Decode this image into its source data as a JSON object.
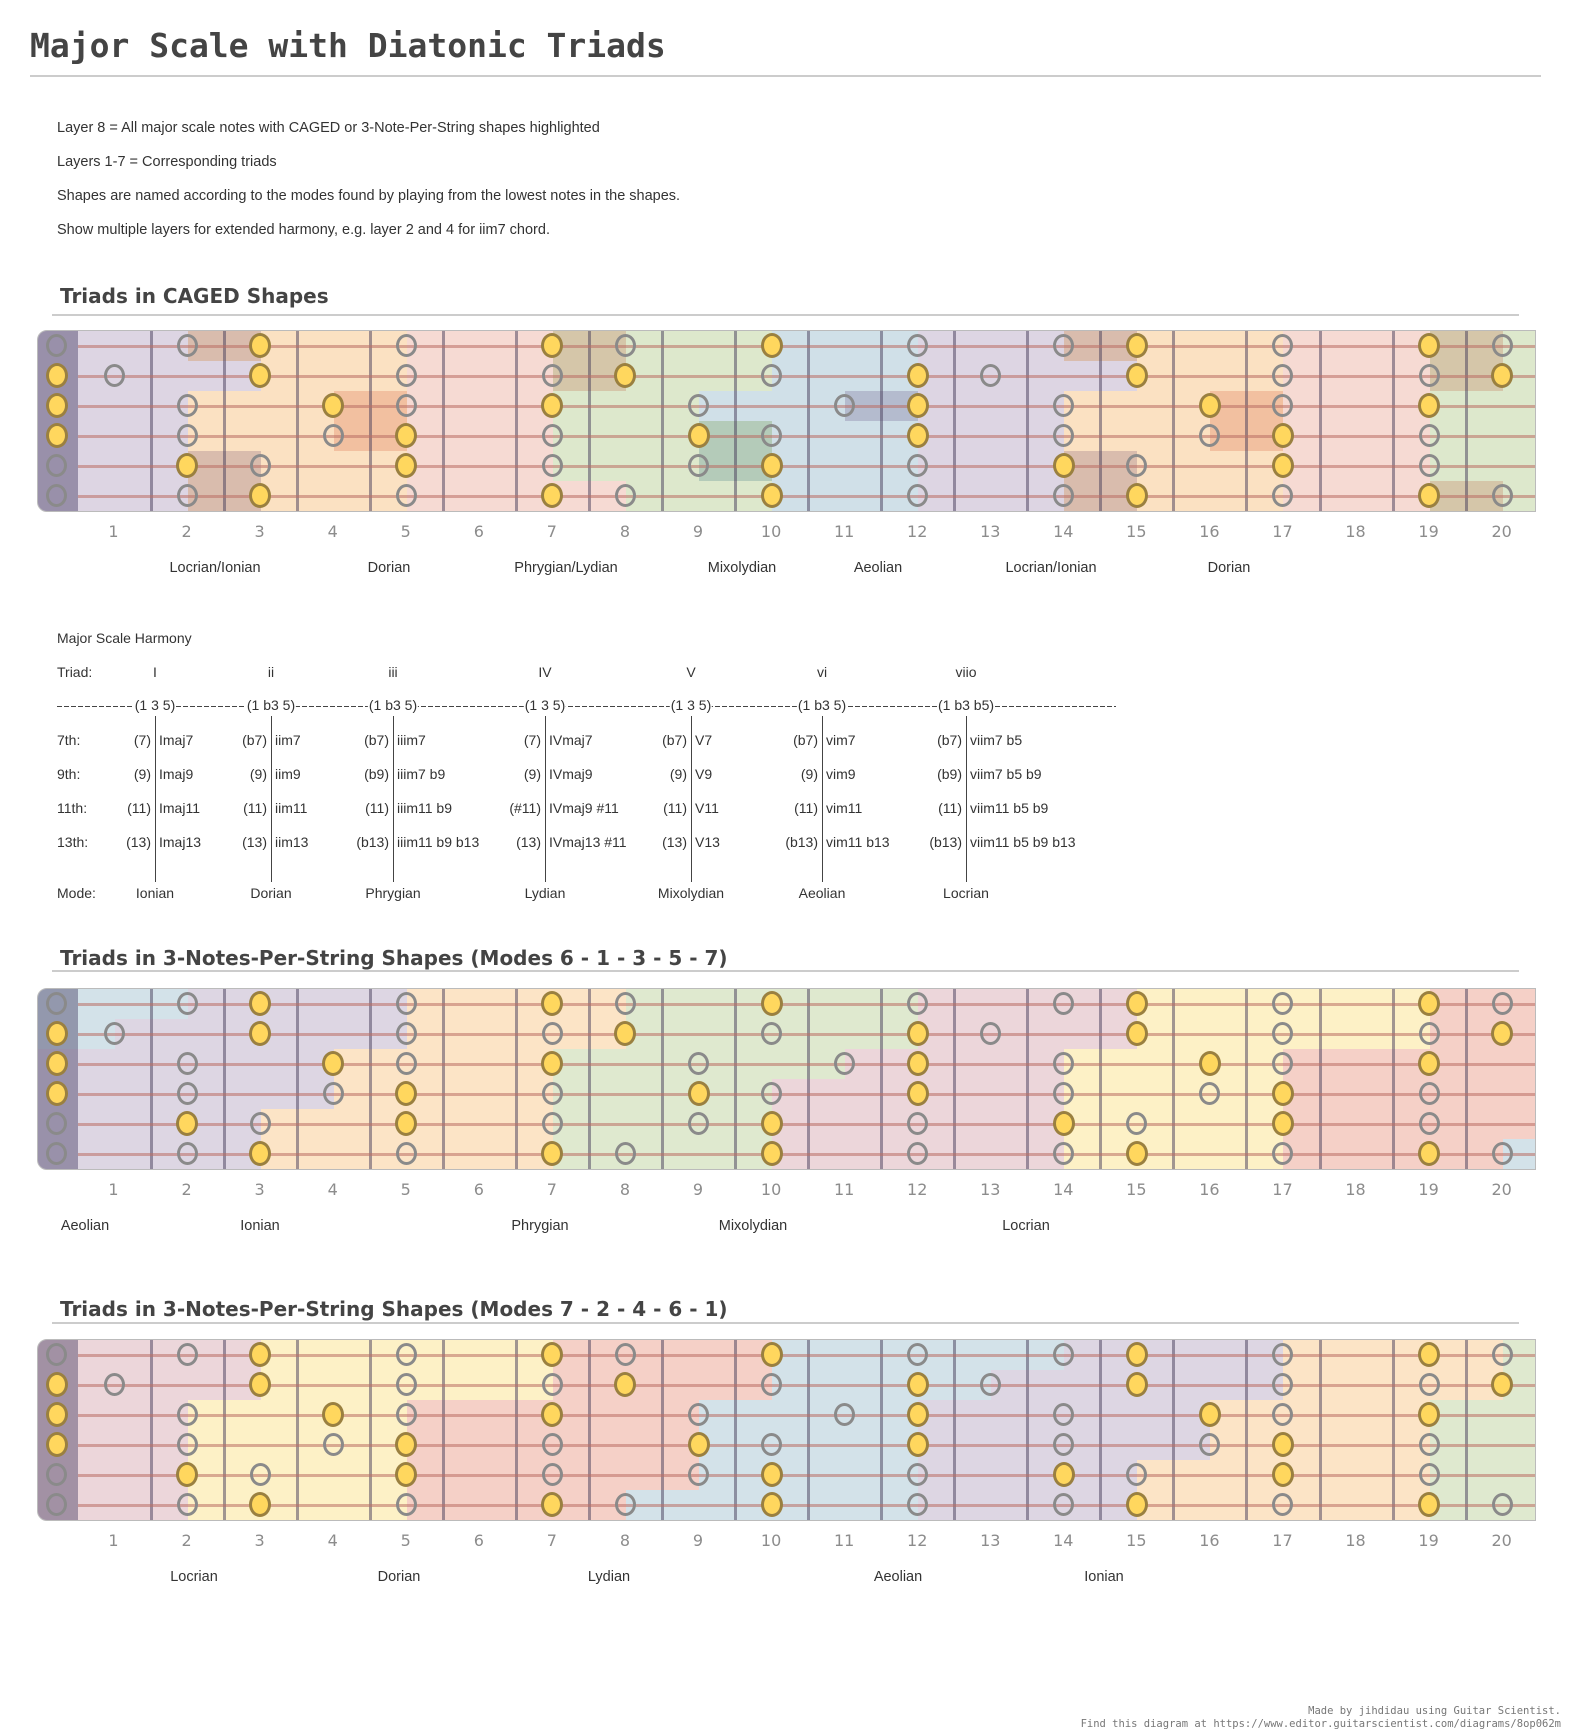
{
  "title": "Major Scale with Diatonic Triads",
  "description": [
    "Layer 8 = All major scale notes with CAGED or 3-Note-Per-String shapes highlighted",
    "Layers 1-7 = Corresponding triads",
    "Shapes are named according to the modes found by playing from the lowest notes in the shapes.",
    "Show multiple layers for extended harmony, e.g. layer 2 and 4 for iim7 chord."
  ],
  "fret_numbers": [
    "1",
    "2",
    "3",
    "4",
    "5",
    "6",
    "7",
    "8",
    "9",
    "10",
    "11",
    "12",
    "13",
    "14",
    "15",
    "16",
    "17",
    "18",
    "19",
    "20"
  ],
  "notes": {
    "strings": [
      {
        "scale": [
          0,
          2,
          3,
          5,
          7,
          8,
          10,
          12,
          14,
          15,
          17,
          19,
          20
        ],
        "triad": [
          3,
          7,
          10,
          15,
          19
        ]
      },
      {
        "scale": [
          0,
          1,
          3,
          5,
          7,
          8,
          10,
          12,
          13,
          15,
          17,
          19,
          20
        ],
        "triad": [
          0,
          3,
          8,
          12,
          15,
          20
        ]
      },
      {
        "scale": [
          0,
          2,
          4,
          5,
          7,
          9,
          11,
          12,
          14,
          16,
          17,
          19
        ],
        "triad": [
          0,
          4,
          7,
          12,
          16,
          19
        ]
      },
      {
        "scale": [
          0,
          2,
          4,
          5,
          7,
          9,
          10,
          12,
          14,
          16,
          17,
          19
        ],
        "triad": [
          0,
          5,
          9,
          12,
          17
        ]
      },
      {
        "scale": [
          0,
          2,
          3,
          5,
          7,
          9,
          10,
          12,
          14,
          15,
          17,
          19
        ],
        "triad": [
          2,
          5,
          10,
          14,
          17
        ]
      },
      {
        "scale": [
          0,
          2,
          3,
          5,
          7,
          8,
          10,
          12,
          14,
          15,
          17,
          19,
          20
        ],
        "triad": [
          3,
          7,
          10,
          15,
          19
        ]
      }
    ],
    "colors": {
      "triad_fill": "#ffd75e",
      "triad_border": "#9a8040",
      "scale_border": "#8a8a8a"
    }
  },
  "fretboards": [
    {
      "heading": "Triads in CAGED Shapes",
      "mode_labels": [
        "Locrian/Ionian",
        "Dorian",
        "Phrygian/Lydian",
        "Mixolydian",
        "Aeolian",
        "Locrian/Ionian",
        "Dorian"
      ],
      "shapes": [
        {
          "color": "#ddd5e3",
          "spans": [
            [
              0,
              3
            ],
            [
              0,
              3
            ],
            [
              0,
              2
            ],
            [
              0,
              2
            ],
            [
              0,
              3
            ],
            [
              0,
              3
            ]
          ]
        },
        {
          "color": "#fbe1c2",
          "spans": [
            [
              2,
              5
            ],
            [
              3,
              5
            ],
            [
              2,
              5
            ],
            [
              2,
              5
            ],
            [
              2,
              5
            ],
            [
              2,
              5
            ]
          ]
        },
        {
          "color": "#f6dad3",
          "spans": [
            [
              5,
              8
            ],
            [
              5,
              8
            ],
            [
              4,
              7
            ],
            [
              4,
              7
            ],
            [
              5,
              7
            ],
            [
              5,
              8
            ]
          ]
        },
        {
          "color": "#dde8cc",
          "spans": [
            [
              7,
              10
            ],
            [
              7,
              10
            ],
            [
              7,
              9
            ],
            [
              7,
              10
            ],
            [
              7,
              10
            ],
            [
              8,
              10
            ]
          ]
        },
        {
          "color": "#d0e0e8",
          "spans": [
            [
              10,
              12
            ],
            [
              10,
              12
            ],
            [
              9,
              12
            ],
            [
              9,
              12
            ],
            [
              9,
              12
            ],
            [
              10,
              12
            ]
          ]
        },
        {
          "color": "#ddd5e3",
          "spans": [
            [
              12,
              15
            ],
            [
              12,
              15
            ],
            [
              11,
              14
            ],
            [
              12,
              14
            ],
            [
              12,
              15
            ],
            [
              12,
              15
            ]
          ]
        },
        {
          "color": "#fbe1c2",
          "spans": [
            [
              14,
              17
            ],
            [
              15,
              17
            ],
            [
              14,
              17
            ],
            [
              14,
              17
            ],
            [
              14,
              17
            ],
            [
              14,
              17
            ]
          ]
        },
        {
          "color": "#f6dad3",
          "spans": [
            [
              17,
              20
            ],
            [
              17,
              20
            ],
            [
              16,
              19
            ],
            [
              16,
              19
            ],
            [
              17,
              19
            ],
            [
              17,
              20
            ]
          ]
        },
        {
          "color": "#dde8cc",
          "spans": [
            [
              19,
              21
            ],
            [
              19,
              21
            ],
            [
              19,
              21
            ],
            [
              19,
              21
            ],
            [
              19,
              21
            ],
            [
              19,
              21
            ]
          ]
        }
      ]
    },
    {
      "heading": "Triads in 3-Notes-Per-String Shapes (Modes 6 - 1 - 3 - 5 - 7)",
      "mode_labels": [
        "Aeolian",
        "Ionian",
        "Phrygian",
        "Mixolydian",
        "Locrian"
      ],
      "shapes": [
        {
          "color": "#d3e2e9",
          "spans": [
            [
              0,
              2
            ],
            [
              0,
              1
            ],
            null,
            null,
            null,
            null
          ]
        },
        {
          "color": "#ddd6e3",
          "spans": [
            [
              2,
              5
            ],
            [
              1,
              5
            ],
            [
              0,
              4
            ],
            [
              0,
              4
            ],
            [
              0,
              3
            ],
            [
              0,
              3
            ]
          ]
        },
        {
          "color": "#fce4c6",
          "spans": [
            [
              5,
              8
            ],
            [
              5,
              8
            ],
            [
              4,
              7
            ],
            [
              4,
              7
            ],
            [
              3,
              7
            ],
            [
              3,
              7
            ]
          ]
        },
        {
          "color": "#dfe9cf",
          "spans": [
            [
              8,
              12
            ],
            [
              8,
              12
            ],
            [
              7,
              11
            ],
            [
              7,
              10
            ],
            [
              7,
              10
            ],
            [
              7,
              10
            ]
          ]
        },
        {
          "color": "#ecd6da",
          "spans": [
            [
              12,
              15
            ],
            [
              12,
              15
            ],
            [
              11,
              14
            ],
            [
              10,
              14
            ],
            [
              10,
              14
            ],
            [
              10,
              14
            ]
          ]
        },
        {
          "color": "#fdf1c6",
          "spans": [
            [
              15,
              19
            ],
            [
              15,
              19
            ],
            [
              14,
              17
            ],
            [
              14,
              17
            ],
            [
              14,
              17
            ],
            [
              14,
              17
            ]
          ]
        },
        {
          "color": "#f5d0c7",
          "spans": [
            [
              19,
              21
            ],
            [
              19,
              21
            ],
            [
              17,
              21
            ],
            [
              17,
              21
            ],
            [
              17,
              21
            ],
            [
              17,
              20
            ]
          ]
        },
        {
          "color": "#d3e2e9",
          "spans": [
            null,
            null,
            null,
            null,
            null,
            [
              20,
              21
            ]
          ]
        }
      ]
    },
    {
      "heading": "Triads in 3-Notes-Per-String Shapes (Modes 7 - 2 - 4 - 6 - 1)",
      "mode_labels": [
        "Locrian",
        "Dorian",
        "Lydian",
        "Aeolian",
        "Ionian"
      ],
      "shapes": [
        {
          "color": "#ecd6da",
          "spans": [
            [
              0,
              3
            ],
            [
              0,
              3
            ],
            [
              0,
              2
            ],
            [
              0,
              2
            ],
            [
              0,
              2
            ],
            [
              0,
              2
            ]
          ]
        },
        {
          "color": "#fdf1c6",
          "spans": [
            [
              3,
              7
            ],
            [
              3,
              7
            ],
            [
              2,
              5
            ],
            [
              2,
              5
            ],
            [
              2,
              5
            ],
            [
              2,
              5
            ]
          ]
        },
        {
          "color": "#f5d0c7",
          "spans": [
            [
              7,
              10
            ],
            [
              7,
              10
            ],
            [
              5,
              9
            ],
            [
              5,
              9
            ],
            [
              5,
              9
            ],
            [
              5,
              8
            ]
          ]
        },
        {
          "color": "#d3e2e9",
          "spans": [
            [
              10,
              14
            ],
            [
              10,
              13
            ],
            [
              9,
              12
            ],
            [
              9,
              12
            ],
            [
              9,
              12
            ],
            [
              8,
              12
            ]
          ]
        },
        {
          "color": "#ddd6e3",
          "spans": [
            [
              14,
              17
            ],
            [
              13,
              17
            ],
            [
              12,
              16
            ],
            [
              12,
              16
            ],
            [
              12,
              15
            ],
            [
              12,
              15
            ]
          ]
        },
        {
          "color": "#fce4c6",
          "spans": [
            [
              17,
              20
            ],
            [
              17,
              20
            ],
            [
              16,
              19
            ],
            [
              16,
              19
            ],
            [
              15,
              19
            ],
            [
              15,
              19
            ]
          ]
        },
        {
          "color": "#dfe9cf",
          "spans": [
            [
              20,
              21
            ],
            [
              20,
              21
            ],
            [
              19,
              21
            ],
            [
              19,
              21
            ],
            [
              19,
              21
            ],
            [
              19,
              21
            ]
          ]
        }
      ]
    }
  ],
  "harmony": {
    "title": "Major Scale Harmony",
    "row_labels": {
      "triad": "Triad:",
      "r7": "7th:",
      "r9": "9th:",
      "r11": "11th:",
      "r13": "13th:",
      "mode": "Mode:"
    },
    "columns": [
      {
        "triad": "I",
        "formula": "(1 3 5)",
        "r7": [
          "(7)",
          "Imaj7"
        ],
        "r9": [
          "(9)",
          "Imaj9"
        ],
        "r11": [
          "(11)",
          "Imaj11"
        ],
        "r13": [
          "(13)",
          "Imaj13"
        ],
        "mode": "Ionian"
      },
      {
        "triad": "ii",
        "formula": "(1 b3 5)",
        "r7": [
          "(b7)",
          "iim7"
        ],
        "r9": [
          "(9)",
          "iim9"
        ],
        "r11": [
          "(11)",
          "iim11"
        ],
        "r13": [
          "(13)",
          "iim13"
        ],
        "mode": "Dorian"
      },
      {
        "triad": "iii",
        "formula": "(1 b3 5)",
        "r7": [
          "(b7)",
          "iiim7"
        ],
        "r9": [
          "(b9)",
          "iiim7 b9"
        ],
        "r11": [
          "(11)",
          "iiim11 b9"
        ],
        "r13": [
          "(b13)",
          "iiim11 b9 b13"
        ],
        "mode": "Phrygian"
      },
      {
        "triad": "IV",
        "formula": "(1 3 5)",
        "r7": [
          "(7)",
          "IVmaj7"
        ],
        "r9": [
          "(9)",
          "IVmaj9"
        ],
        "r11": [
          "(#11)",
          "IVmaj9 #11"
        ],
        "r13": [
          "(13)",
          "IVmaj13 #11"
        ],
        "mode": "Lydian"
      },
      {
        "triad": "V",
        "formula": "(1 3 5)",
        "r7": [
          "(b7)",
          "V7"
        ],
        "r9": [
          "(9)",
          "V9"
        ],
        "r11": [
          "(11)",
          "V11"
        ],
        "r13": [
          "(13)",
          "V13"
        ],
        "mode": "Mixolydian"
      },
      {
        "triad": "vi",
        "formula": "(1 b3 5)",
        "r7": [
          "(b7)",
          "vim7"
        ],
        "r9": [
          "(9)",
          "vim9"
        ],
        "r11": [
          "(11)",
          "vim11"
        ],
        "r13": [
          "(b13)",
          "vim11 b13"
        ],
        "mode": "Aeolian"
      },
      {
        "triad": "viio",
        "formula": "(1 b3 b5)",
        "r7": [
          "(b7)",
          "viim7 b5"
        ],
        "r9": [
          "(b9)",
          "viim7 b5 b9"
        ],
        "r11": [
          "(11)",
          "viim11 b5 b9"
        ],
        "r13": [
          "(b13)",
          "viim11 b5 b9 b13"
        ],
        "mode": "Locrian"
      }
    ]
  },
  "footer": {
    "line1": "Made by jihdidau using Guitar Scientist.",
    "line2": "Find this diagram at https://www.editor.guitarscientist.com/diagrams/8op062m"
  }
}
